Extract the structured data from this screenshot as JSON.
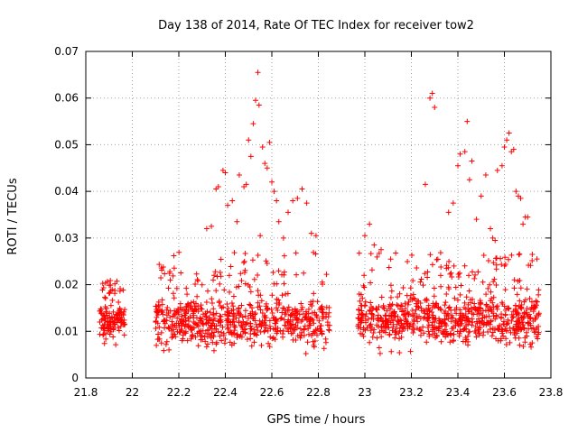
{
  "chart_data": {
    "type": "scatter",
    "title": "Day 138 of 2014, Rate Of TEC Index for receiver tow2",
    "xlabel": "GPS time / hours",
    "ylabel": "ROTI / TECUs",
    "xlim": [
      21.8,
      23.8
    ],
    "ylim": [
      0,
      0.07
    ],
    "x_ticks": [
      21.8,
      22.0,
      22.2,
      22.4,
      22.6,
      22.8,
      23.0,
      23.2,
      23.4,
      23.6,
      23.8
    ],
    "x_tick_labels": [
      "21.8",
      "22",
      "22.2",
      "22.4",
      "22.6",
      "22.8",
      "23",
      "23.2",
      "23.4",
      "23.6",
      "23.8"
    ],
    "y_ticks": [
      0,
      0.01,
      0.02,
      0.03,
      0.04,
      0.05,
      0.06,
      0.07
    ],
    "y_tick_labels": [
      "0",
      "0.01",
      "0.02",
      "0.03",
      "0.04",
      "0.05",
      "0.06",
      "0.07"
    ],
    "grid": true,
    "marker": "+",
    "color": "#ff0000",
    "series": [
      {
        "name": "ROTI",
        "segments": [
          {
            "x_range": [
              21.86,
              21.97
            ],
            "base": 0.012,
            "spread": 0.004,
            "low": 0.007,
            "high": 0.021,
            "n": 130
          },
          {
            "x_range": [
              22.1,
              22.85
            ],
            "base": 0.012,
            "spread": 0.005,
            "low": 0.004,
            "high": 0.027,
            "n": 680
          },
          {
            "x_range": [
              22.97,
              23.75
            ],
            "base": 0.0125,
            "spread": 0.005,
            "low": 0.004,
            "high": 0.027,
            "n": 760
          }
        ],
        "highlights": [
          {
            "x": 22.32,
            "y": 0.032
          },
          {
            "x": 22.34,
            "y": 0.0325
          },
          {
            "x": 22.36,
            "y": 0.0405
          },
          {
            "x": 22.37,
            "y": 0.041
          },
          {
            "x": 22.39,
            "y": 0.0445
          },
          {
            "x": 22.4,
            "y": 0.044
          },
          {
            "x": 22.41,
            "y": 0.037
          },
          {
            "x": 22.43,
            "y": 0.038
          },
          {
            "x": 22.45,
            "y": 0.0335
          },
          {
            "x": 22.46,
            "y": 0.0435
          },
          {
            "x": 22.48,
            "y": 0.041
          },
          {
            "x": 22.49,
            "y": 0.0415
          },
          {
            "x": 22.5,
            "y": 0.051
          },
          {
            "x": 22.51,
            "y": 0.0475
          },
          {
            "x": 22.52,
            "y": 0.0545
          },
          {
            "x": 22.53,
            "y": 0.0595
          },
          {
            "x": 22.54,
            "y": 0.0655
          },
          {
            "x": 22.545,
            "y": 0.0585
          },
          {
            "x": 22.55,
            "y": 0.0305
          },
          {
            "x": 22.56,
            "y": 0.0495
          },
          {
            "x": 22.57,
            "y": 0.046
          },
          {
            "x": 22.58,
            "y": 0.045
          },
          {
            "x": 22.59,
            "y": 0.0505
          },
          {
            "x": 22.6,
            "y": 0.042
          },
          {
            "x": 22.61,
            "y": 0.04
          },
          {
            "x": 22.62,
            "y": 0.038
          },
          {
            "x": 22.63,
            "y": 0.0335
          },
          {
            "x": 22.65,
            "y": 0.03
          },
          {
            "x": 22.67,
            "y": 0.0355
          },
          {
            "x": 22.69,
            "y": 0.038
          },
          {
            "x": 22.71,
            "y": 0.0385
          },
          {
            "x": 22.73,
            "y": 0.0405
          },
          {
            "x": 22.75,
            "y": 0.0375
          },
          {
            "x": 22.77,
            "y": 0.031
          },
          {
            "x": 22.79,
            "y": 0.0305
          },
          {
            "x": 23.0,
            "y": 0.0305
          },
          {
            "x": 23.02,
            "y": 0.033
          },
          {
            "x": 23.04,
            "y": 0.0285
          },
          {
            "x": 23.07,
            "y": 0.0275
          },
          {
            "x": 23.26,
            "y": 0.0415
          },
          {
            "x": 23.28,
            "y": 0.06
          },
          {
            "x": 23.29,
            "y": 0.061
          },
          {
            "x": 23.3,
            "y": 0.058
          },
          {
            "x": 23.36,
            "y": 0.0355
          },
          {
            "x": 23.38,
            "y": 0.0375
          },
          {
            "x": 23.4,
            "y": 0.0455
          },
          {
            "x": 23.41,
            "y": 0.048
          },
          {
            "x": 23.43,
            "y": 0.0485
          },
          {
            "x": 23.44,
            "y": 0.055
          },
          {
            "x": 23.45,
            "y": 0.0425
          },
          {
            "x": 23.46,
            "y": 0.0465
          },
          {
            "x": 23.48,
            "y": 0.034
          },
          {
            "x": 23.5,
            "y": 0.039
          },
          {
            "x": 23.52,
            "y": 0.0435
          },
          {
            "x": 23.54,
            "y": 0.032
          },
          {
            "x": 23.55,
            "y": 0.03
          },
          {
            "x": 23.56,
            "y": 0.0295
          },
          {
            "x": 23.57,
            "y": 0.0445
          },
          {
            "x": 23.59,
            "y": 0.0455
          },
          {
            "x": 23.6,
            "y": 0.0495
          },
          {
            "x": 23.61,
            "y": 0.051
          },
          {
            "x": 23.62,
            "y": 0.0525
          },
          {
            "x": 23.63,
            "y": 0.0485
          },
          {
            "x": 23.64,
            "y": 0.049
          },
          {
            "x": 23.65,
            "y": 0.04
          },
          {
            "x": 23.66,
            "y": 0.039
          },
          {
            "x": 23.67,
            "y": 0.0385
          },
          {
            "x": 23.68,
            "y": 0.033
          },
          {
            "x": 23.69,
            "y": 0.0345
          },
          {
            "x": 23.7,
            "y": 0.0345
          },
          {
            "x": 23.72,
            "y": 0.0265
          },
          {
            "x": 23.74,
            "y": 0.0255
          }
        ]
      }
    ]
  }
}
